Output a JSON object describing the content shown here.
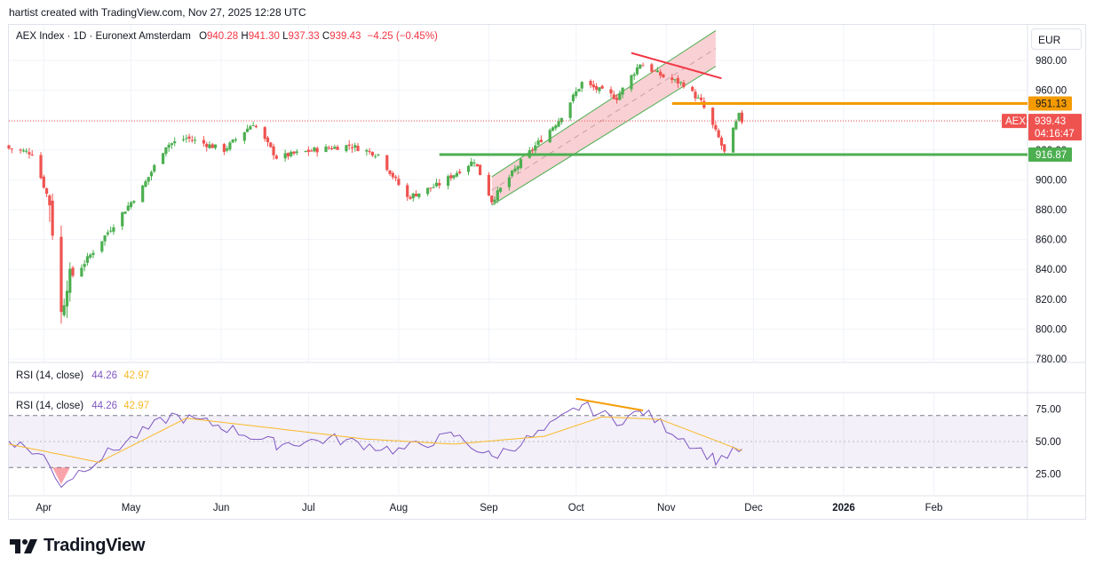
{
  "header": {
    "attribution": "hartist created with TradingView.com, Nov 27, 2025 12:28 UTC"
  },
  "legend": {
    "symbol": "AEX Index · 1D · Euronext Amsterdam",
    "o_label": "O",
    "o_value": "940.28",
    "h_label": "H",
    "h_value": "941.30",
    "l_label": "L",
    "l_value": "937.33",
    "c_label": "C",
    "c_value": "939.43",
    "change": "−4.25 (−0.45%)"
  },
  "currency_button": "EUR",
  "rsi_legend_1": {
    "name": "RSI (14, close)",
    "rsi": "44.26",
    "ma": "42.97"
  },
  "rsi_legend_2": {
    "name": "RSI (14, close)",
    "rsi": "44.26",
    "ma": "42.97"
  },
  "footer": {
    "logo": "TradingView"
  },
  "colors": {
    "up": "#4caf50",
    "down": "#ef5350",
    "rsi": "#7e57c2",
    "rsi_ma": "#f9b928",
    "channel_fill": "#f8c8cc",
    "channel_line": "#4caf50",
    "resistance": "#f59b00",
    "support": "#4caf50",
    "trend_red": "#f23645",
    "divergence": "#f59b00"
  },
  "chart_data": [
    {
      "type": "candlestick",
      "title": "AEX Index · 1D · Euronext Amsterdam",
      "currency": "EUR",
      "x_ticks": [
        "Apr",
        "May",
        "Jun",
        "Jul",
        "Aug",
        "Sep",
        "Oct",
        "Nov",
        "Dec",
        "2026",
        "Feb"
      ],
      "y_ticks": [
        "780.00",
        "800.00",
        "820.00",
        "840.00",
        "860.00",
        "880.00",
        "900.00",
        "920.00",
        "940.00",
        "960.00",
        "980.00"
      ],
      "ylim": [
        774,
        1000
      ],
      "grid": true,
      "series_daily_close_approx": [
        {
          "date": "2025-03-20",
          "close": 921
        },
        {
          "date": "2025-03-28",
          "close": 918
        },
        {
          "date": "2025-04-03",
          "close": 885
        },
        {
          "date": "2025-04-07",
          "close": 810
        },
        {
          "date": "2025-04-09",
          "close": 832
        },
        {
          "date": "2025-04-14",
          "close": 842
        },
        {
          "date": "2025-04-25",
          "close": 870
        },
        {
          "date": "2025-05-05",
          "close": 895
        },
        {
          "date": "2025-05-13",
          "close": 923
        },
        {
          "date": "2025-05-20",
          "close": 928
        },
        {
          "date": "2025-06-02",
          "close": 920
        },
        {
          "date": "2025-06-12",
          "close": 938
        },
        {
          "date": "2025-06-20",
          "close": 915
        },
        {
          "date": "2025-07-03",
          "close": 920
        },
        {
          "date": "2025-07-15",
          "close": 923
        },
        {
          "date": "2025-07-25",
          "close": 917
        },
        {
          "date": "2025-08-04",
          "close": 888
        },
        {
          "date": "2025-08-15",
          "close": 897
        },
        {
          "date": "2025-08-27",
          "close": 913
        },
        {
          "date": "2025-09-02",
          "close": 886
        },
        {
          "date": "2025-09-12",
          "close": 912
        },
        {
          "date": "2025-09-25",
          "close": 940
        },
        {
          "date": "2025-10-03",
          "close": 965
        },
        {
          "date": "2025-10-15",
          "close": 955
        },
        {
          "date": "2025-10-23",
          "close": 978
        },
        {
          "date": "2025-10-31",
          "close": 969
        },
        {
          "date": "2025-11-07",
          "close": 964
        },
        {
          "date": "2025-11-13",
          "close": 952
        },
        {
          "date": "2025-11-19",
          "close": 928
        },
        {
          "date": "2025-11-21",
          "close": 918
        },
        {
          "date": "2025-11-26",
          "close": 943
        },
        {
          "date": "2025-11-27",
          "close": 939.43
        }
      ],
      "last_price": {
        "label": "AEX",
        "value": "939.43",
        "countdown": "04:16:47"
      },
      "horizontal_levels": [
        {
          "value": "951.13",
          "color": "#f59b00"
        },
        {
          "value": "916.87",
          "color": "#4caf50"
        }
      ]
    },
    {
      "type": "line",
      "title": "RSI (14, close)",
      "y_ticks": [
        "25.00",
        "50.00",
        "75.00"
      ],
      "ylim": [
        10,
        88
      ],
      "bands": [
        30,
        50,
        70
      ],
      "series": [
        {
          "name": "RSI",
          "points": [
            {
              "date": "2025-03-20",
              "value": 52
            },
            {
              "date": "2025-04-01",
              "value": 38
            },
            {
              "date": "2025-04-07",
              "value": 17
            },
            {
              "date": "2025-04-15",
              "value": 30
            },
            {
              "date": "2025-05-01",
              "value": 52
            },
            {
              "date": "2025-05-15",
              "value": 70
            },
            {
              "date": "2025-06-01",
              "value": 62
            },
            {
              "date": "2025-06-20",
              "value": 48
            },
            {
              "date": "2025-07-10",
              "value": 52
            },
            {
              "date": "2025-08-01",
              "value": 43
            },
            {
              "date": "2025-08-20",
              "value": 55
            },
            {
              "date": "2025-09-02",
              "value": 38
            },
            {
              "date": "2025-09-20",
              "value": 58
            },
            {
              "date": "2025-10-03",
              "value": 78
            },
            {
              "date": "2025-10-15",
              "value": 66
            },
            {
              "date": "2025-10-24",
              "value": 73
            },
            {
              "date": "2025-11-05",
              "value": 55
            },
            {
              "date": "2025-11-18",
              "value": 36
            },
            {
              "date": "2025-11-27",
              "value": 44.26
            }
          ]
        },
        {
          "name": "MA",
          "points": [
            {
              "date": "2025-03-20",
              "value": 48
            },
            {
              "date": "2025-04-20",
              "value": 34
            },
            {
              "date": "2025-05-20",
              "value": 68
            },
            {
              "date": "2025-06-20",
              "value": 60
            },
            {
              "date": "2025-07-20",
              "value": 52
            },
            {
              "date": "2025-08-20",
              "value": 48
            },
            {
              "date": "2025-09-20",
              "value": 54
            },
            {
              "date": "2025-10-10",
              "value": 69
            },
            {
              "date": "2025-10-30",
              "value": 67
            },
            {
              "date": "2025-11-27",
              "value": 42.97
            }
          ]
        }
      ]
    }
  ]
}
